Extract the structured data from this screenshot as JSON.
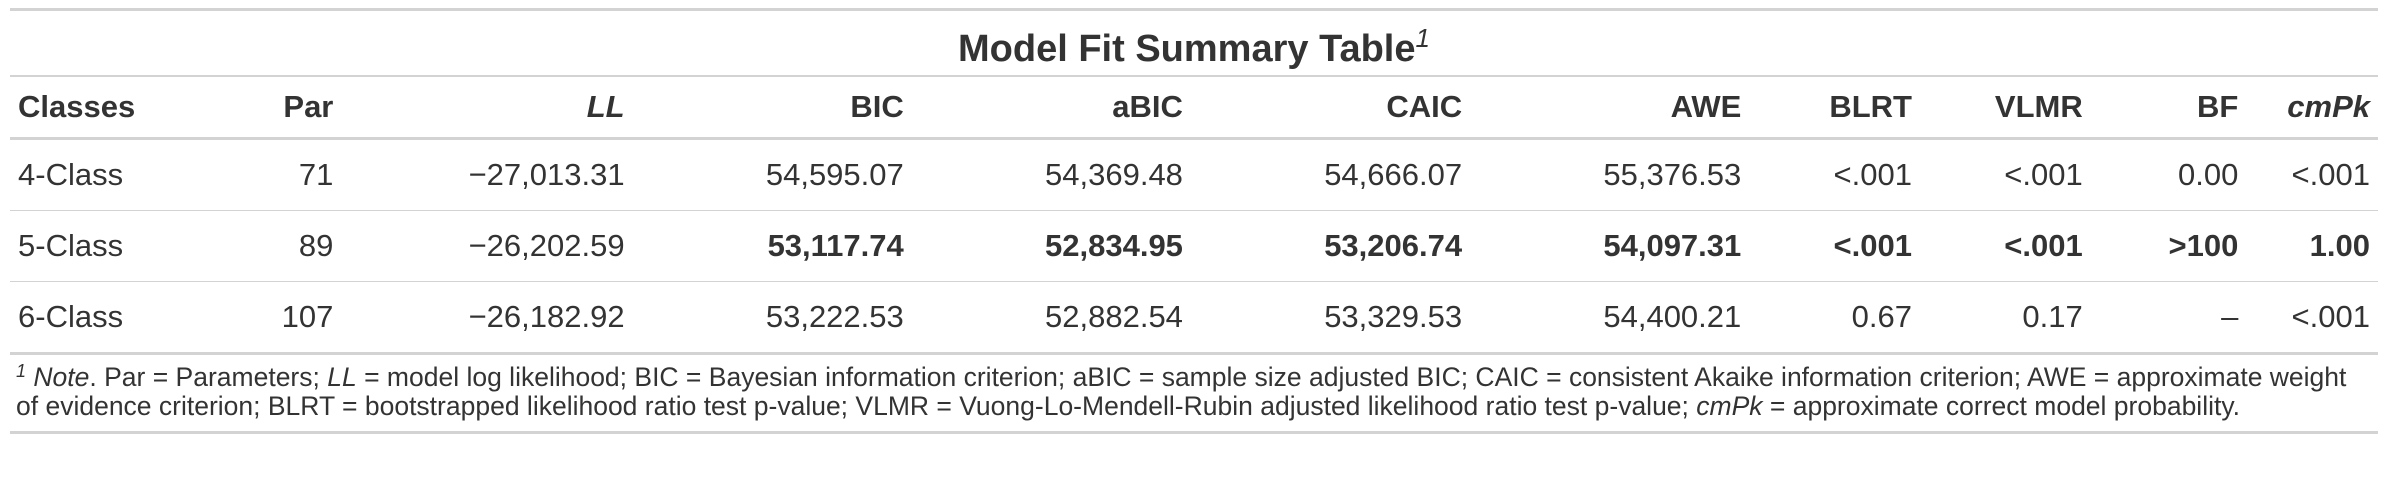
{
  "table": {
    "title": "Model Fit Summary Table",
    "title_footnote_mark": "1",
    "columns": [
      {
        "label": "Classes",
        "italic": false,
        "align": "l"
      },
      {
        "label": "Par",
        "italic": false,
        "align": "r"
      },
      {
        "label": "LL",
        "italic": true,
        "align": "r"
      },
      {
        "label": "BIC",
        "italic": false,
        "align": "r"
      },
      {
        "label": "aBIC",
        "italic": false,
        "align": "r"
      },
      {
        "label": "CAIC",
        "italic": false,
        "align": "r"
      },
      {
        "label": "AWE",
        "italic": false,
        "align": "r"
      },
      {
        "label": "BLRT",
        "italic": false,
        "align": "r"
      },
      {
        "label": "VLMR",
        "italic": false,
        "align": "r"
      },
      {
        "label": "BF",
        "italic": false,
        "align": "r"
      },
      {
        "label": "cmPk",
        "italic": true,
        "align": "r"
      }
    ],
    "rows": [
      {
        "cells": [
          "4-Class",
          "71",
          "−27,013.31",
          "54,595.07",
          "54,369.48",
          "54,666.07",
          "55,376.53",
          "<.001",
          "<.001",
          "0.00",
          "<.001"
        ],
        "bold": [
          false,
          false,
          false,
          false,
          false,
          false,
          false,
          false,
          false,
          false,
          false
        ]
      },
      {
        "cells": [
          "5-Class",
          "89",
          "−26,202.59",
          "53,117.74",
          "52,834.95",
          "53,206.74",
          "54,097.31",
          "<.001",
          "<.001",
          ">100",
          "1.00"
        ],
        "bold": [
          false,
          false,
          false,
          true,
          true,
          true,
          true,
          true,
          true,
          true,
          true
        ]
      },
      {
        "cells": [
          "6-Class",
          "107",
          "−26,182.92",
          "53,222.53",
          "52,882.54",
          "53,329.53",
          "54,400.21",
          "0.67",
          "0.17",
          "–",
          "<.001"
        ],
        "bold": [
          false,
          false,
          false,
          false,
          false,
          false,
          false,
          false,
          false,
          false,
          false
        ]
      }
    ]
  },
  "footnote": {
    "mark": "1",
    "segments": [
      {
        "text": " ",
        "italic": false
      },
      {
        "text": "Note",
        "italic": true
      },
      {
        "text": ". Par = Parameters; ",
        "italic": false
      },
      {
        "text": "LL",
        "italic": true
      },
      {
        "text": " = model log likelihood; BIC = Bayesian information criterion; aBIC = sample size adjusted BIC; CAIC = consistent Akaike information criterion; AWE = approximate weight of evidence criterion; BLRT = bootstrapped likelihood ratio test p-value; VLMR = Vuong-Lo-Mendell-Rubin adjusted likelihood ratio test p-value; ",
        "italic": false
      },
      {
        "text": "cmPk",
        "italic": true
      },
      {
        "text": " = approximate correct model probability.",
        "italic": false
      }
    ]
  }
}
